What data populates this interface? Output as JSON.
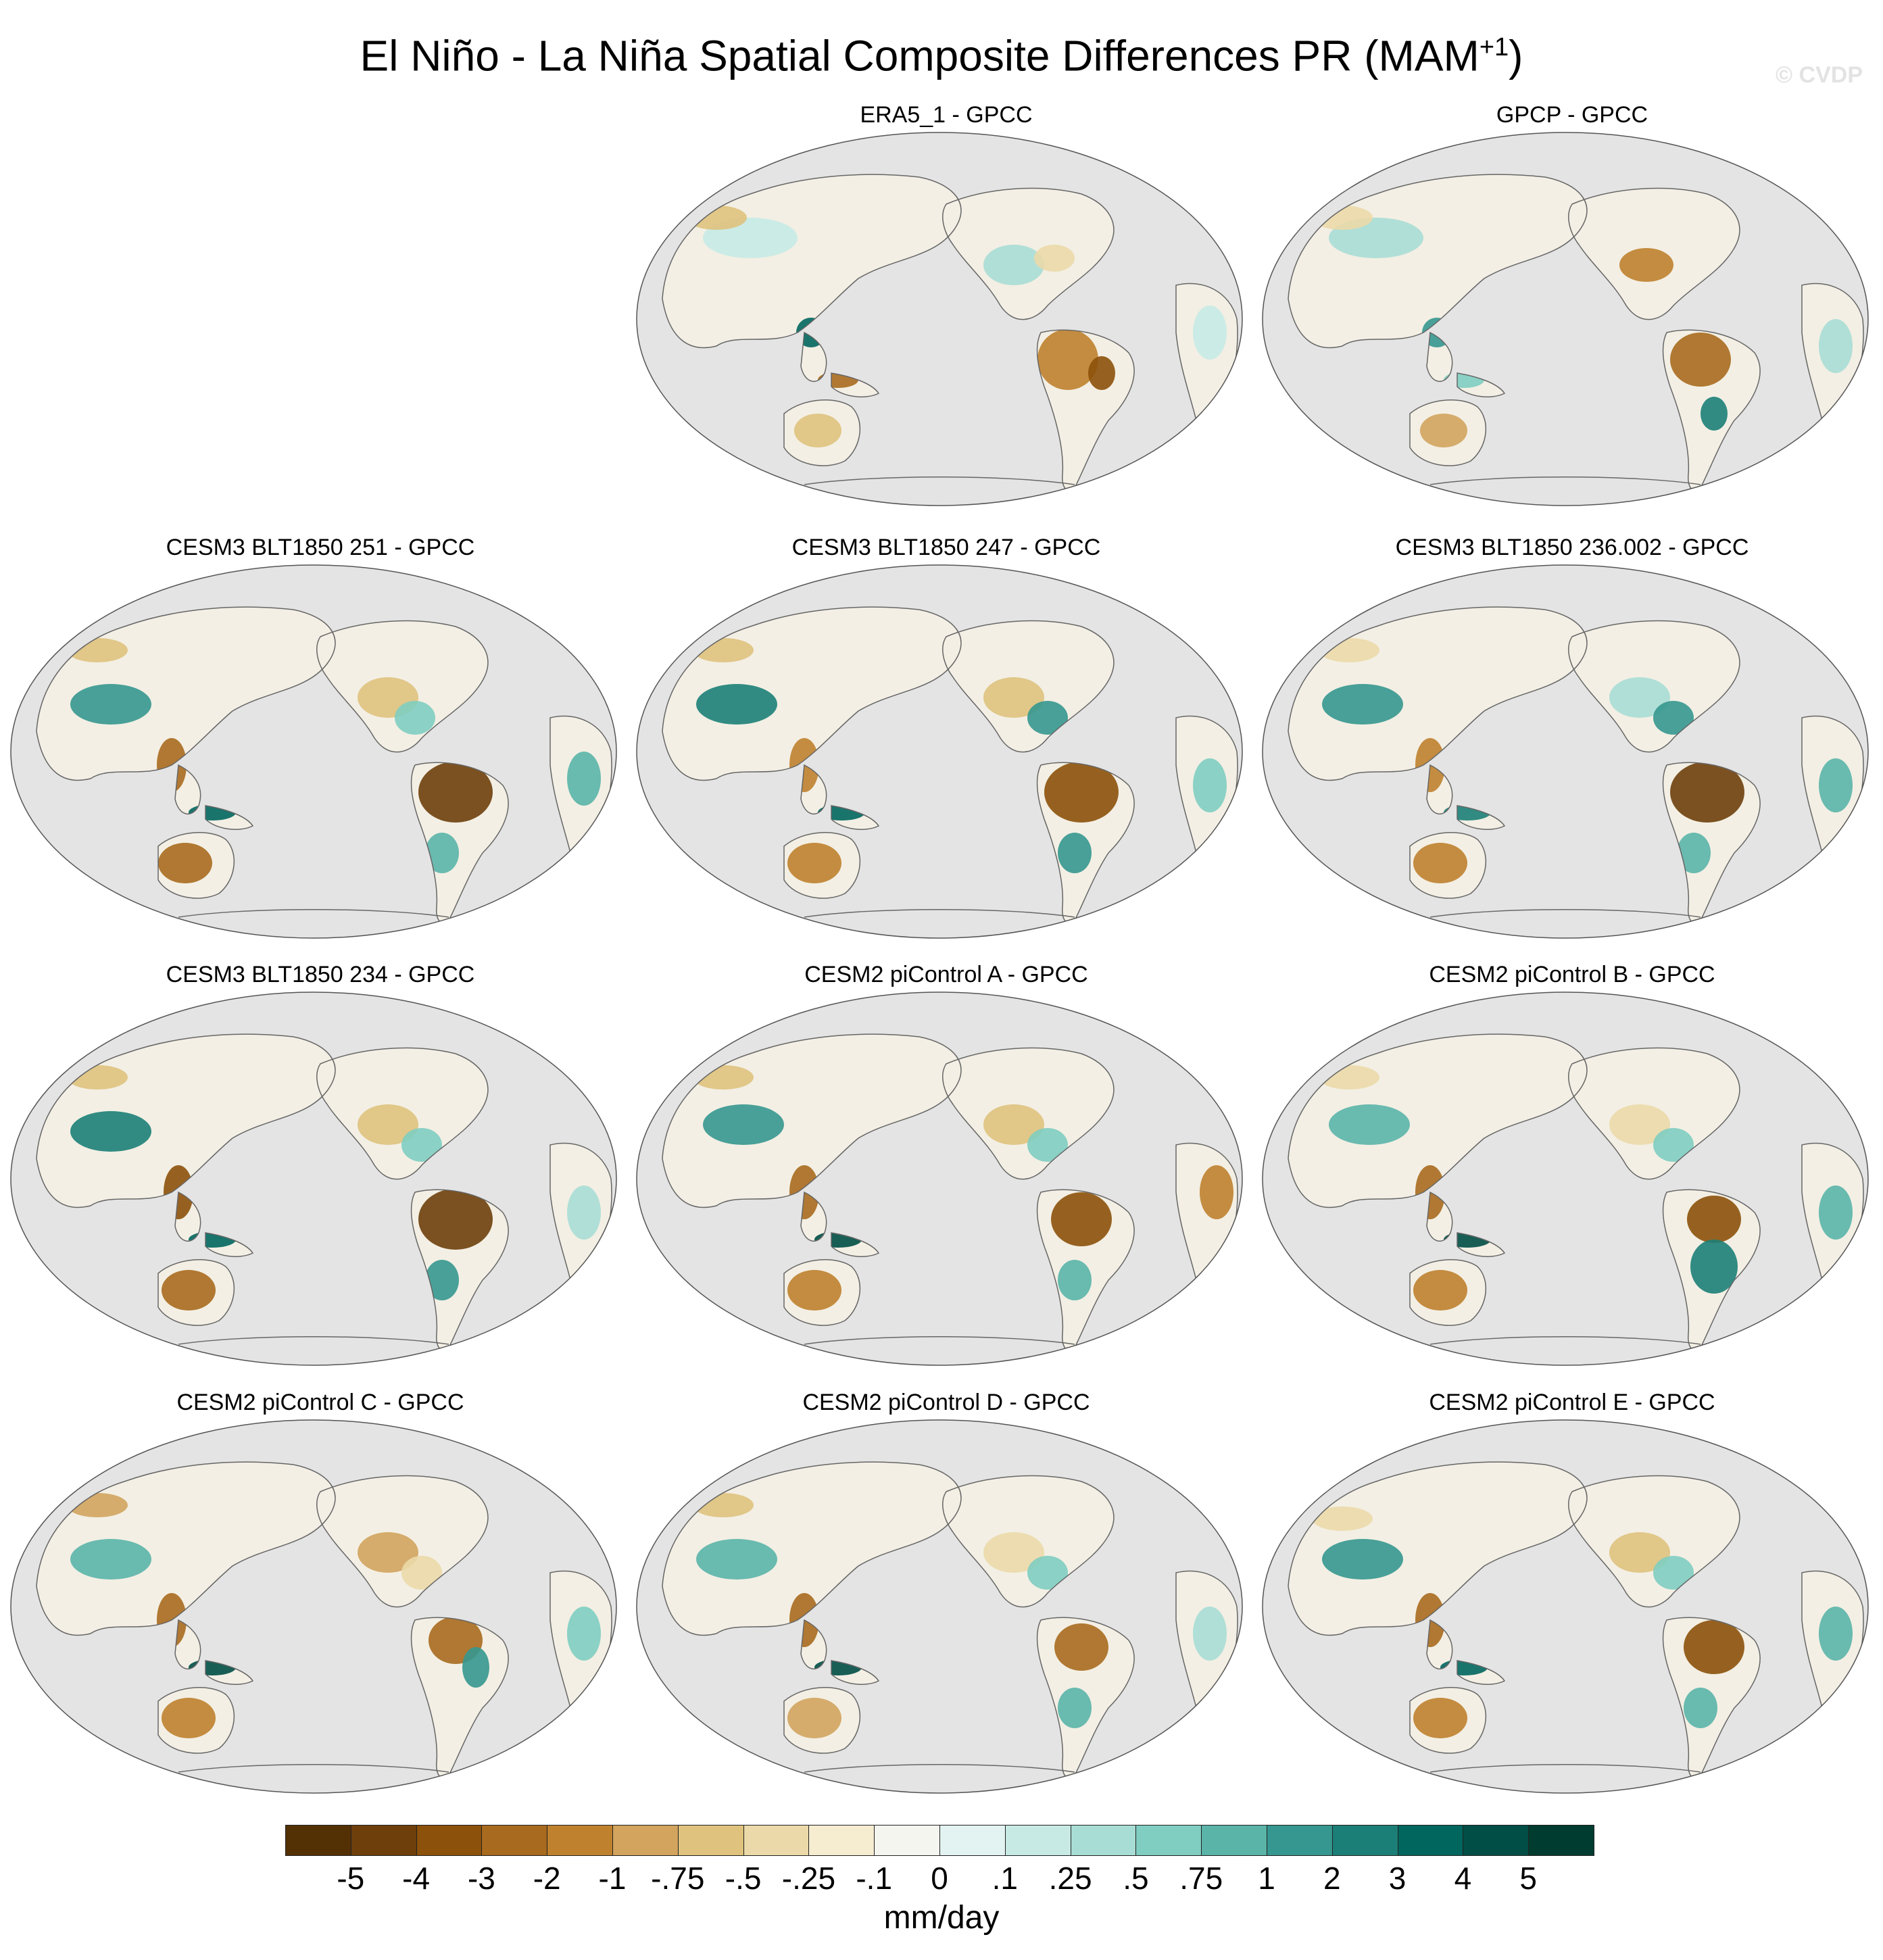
{
  "header": {
    "title": "El Niño - La Niña Spatial Composite Differences PR (MAM",
    "title_sup": "+1",
    "title_close": ")",
    "watermark": "© CVDP"
  },
  "panels": [
    {
      "id": "era5",
      "title": "ERA5_1 - GPCC"
    },
    {
      "id": "gpcp",
      "title": "GPCP - GPCC"
    },
    {
      "id": "blt251",
      "title": "CESM3 BLT1850 251 - GPCC"
    },
    {
      "id": "blt247",
      "title": "CESM3 BLT1850 247 - GPCC"
    },
    {
      "id": "blt236",
      "title": "CESM3 BLT1850 236.002 - GPCC"
    },
    {
      "id": "blt234",
      "title": "CESM3 BLT1850 234 - GPCC"
    },
    {
      "id": "picA",
      "title": "CESM2 piControl A - GPCC"
    },
    {
      "id": "picB",
      "title": "CESM2 piControl B - GPCC"
    },
    {
      "id": "picC",
      "title": "CESM2 piControl C - GPCC"
    },
    {
      "id": "picD",
      "title": "CESM2 piControl D - GPCC"
    },
    {
      "id": "picE",
      "title": "CESM2 piControl E - GPCC"
    }
  ],
  "colorbar": {
    "units": "mm/day",
    "labels": [
      "-5",
      "-4",
      "-3",
      "-2",
      "-1",
      "-.75",
      "-.5",
      "-.25",
      "-.1",
      "0",
      ".1",
      ".25",
      ".5",
      ".75",
      "1",
      "2",
      "3",
      "4",
      "5"
    ],
    "colors": [
      "#543005",
      "#6e3f0b",
      "#8c510a",
      "#a86a1e",
      "#bf812d",
      "#d2a45e",
      "#dfc27d",
      "#ebd9a9",
      "#f6ecd0",
      "#f5f5f0",
      "#e3f3f1",
      "#c7eae5",
      "#a8ddd5",
      "#80cdc1",
      "#5ab4a8",
      "#35978f",
      "#1c7f77",
      "#01665e",
      "#004e45",
      "#003c30"
    ]
  },
  "map_colors": {
    "ocean": "#e4e4e4",
    "land_neutral": "#f3efe4",
    "coast": "#666666"
  }
}
